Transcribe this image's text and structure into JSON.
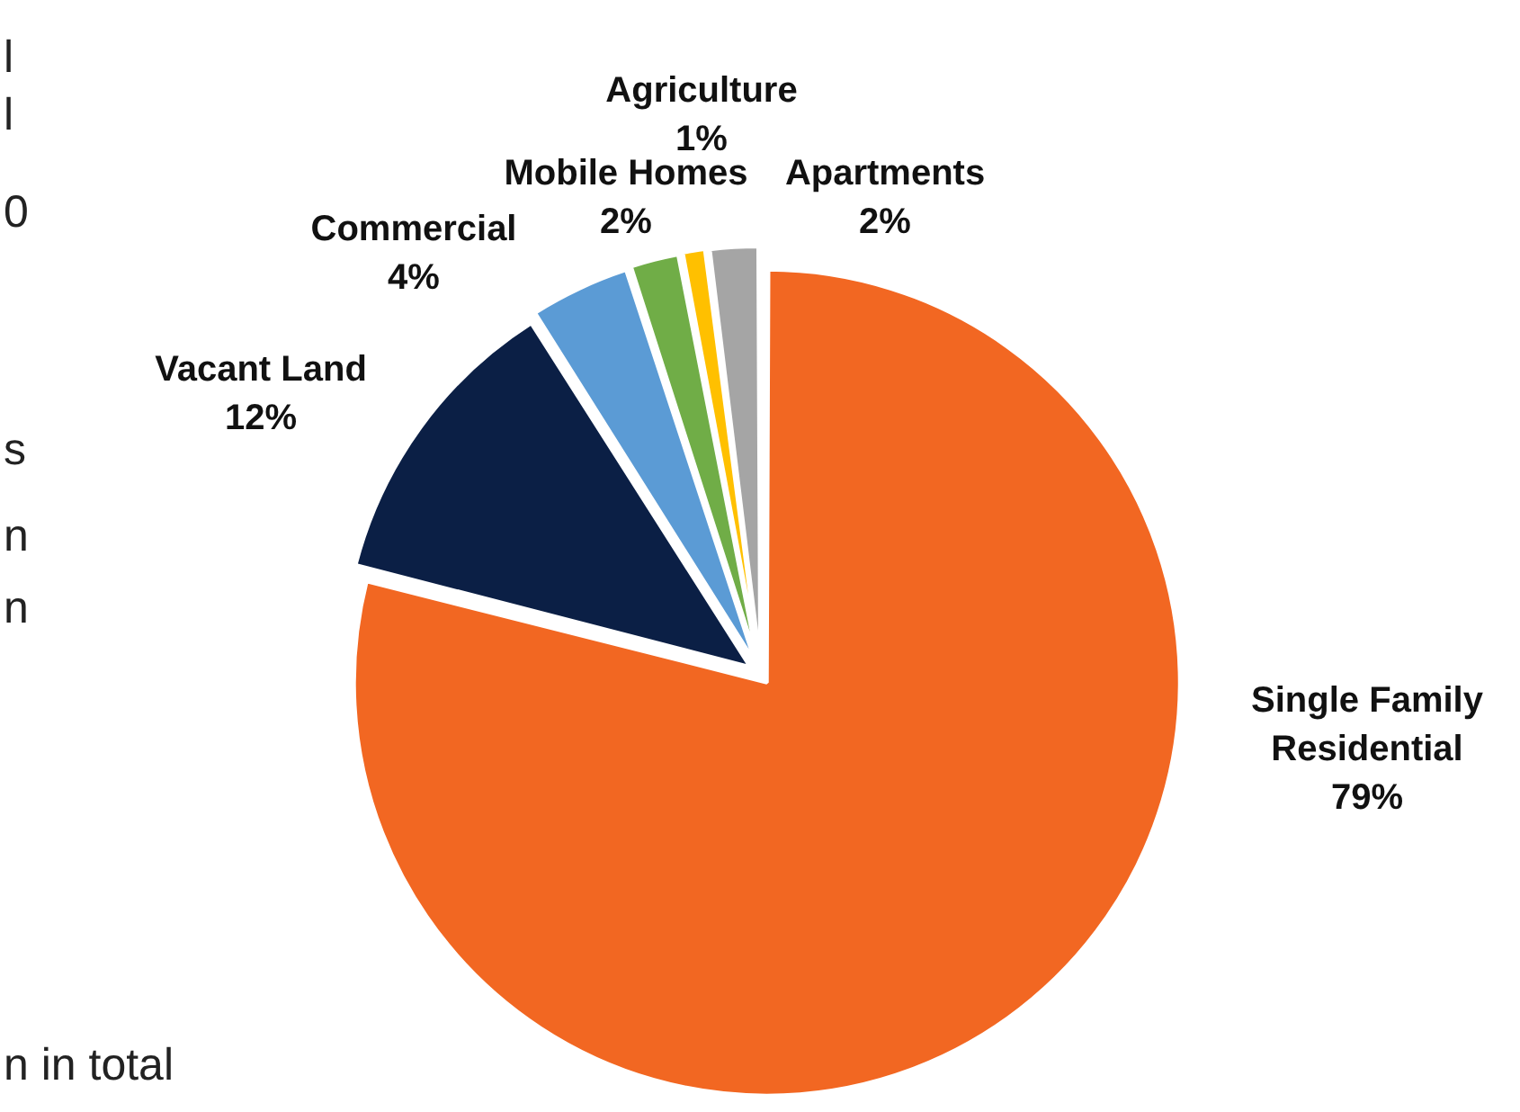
{
  "chart_data": {
    "type": "pie",
    "categories": [
      "Single Family Residential",
      "Vacant Land",
      "Commercial",
      "Mobile Homes",
      "Agriculture",
      "Apartments"
    ],
    "values": [
      79,
      12,
      4,
      2,
      1,
      2
    ],
    "value_labels": [
      "79%",
      "12%",
      "4%",
      "2%",
      "1%",
      "2%"
    ],
    "colors": [
      "#f26722",
      "#0b1f45",
      "#5b9bd5",
      "#70ad47",
      "#ffc000",
      "#a5a5a5"
    ],
    "annotations": [
      "l",
      "l",
      "0",
      "s",
      "n",
      "n",
      "n in total"
    ],
    "legend": false
  }
}
